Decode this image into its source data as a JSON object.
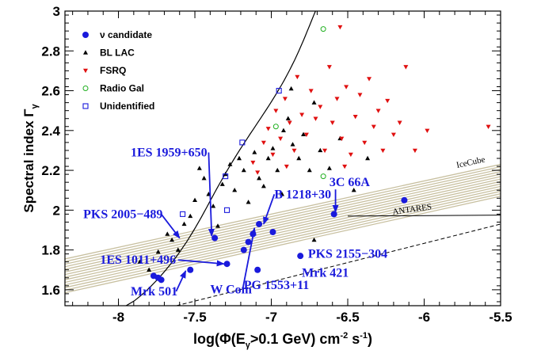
{
  "chart_data": {
    "type": "scatter",
    "xlabel": "log(Φ(E_γ>0.1 GeV) cm⁻² s⁻¹)",
    "xlabel_main": "log(Φ(E",
    "xlabel_sub": "γ",
    "xlabel_rest": ">0.1 GeV) cm",
    "xlabel_sup1": "-2",
    "xlabel_mid": " s",
    "xlabel_sup2": "-1",
    "xlabel_end": ")",
    "ylabel_main": "Spectral index Γ",
    "ylabel_sub": "γ",
    "xlim": [
      -8.35,
      -5.5
    ],
    "ylim": [
      1.52,
      3.0
    ],
    "xticks": [
      -8,
      -7.5,
      -7,
      -6.5,
      -6,
      -5.5
    ],
    "xtick_labels": [
      "-8",
      "-7.5",
      "-7",
      "-6.5",
      "-6",
      "-5.5"
    ],
    "yticks": [
      1.6,
      1.8,
      2.0,
      2.2,
      2.4,
      2.6,
      2.8,
      3.0
    ],
    "ytick_labels": [
      "1.6",
      "1.8",
      "2",
      "2.2",
      "2.4",
      "2.6",
      "2.8",
      "3"
    ],
    "legend_position": "top-left",
    "series": [
      {
        "name": "ν candidate",
        "marker": "filled-circle",
        "color": "#1a1adc",
        "points": [
          {
            "x": -7.77,
            "y": 1.67
          },
          {
            "x": -7.74,
            "y": 1.66
          },
          {
            "x": -7.72,
            "y": 1.65
          },
          {
            "x": -7.53,
            "y": 1.7
          },
          {
            "x": -7.37,
            "y": 1.86
          },
          {
            "x": -7.29,
            "y": 1.73
          },
          {
            "x": -7.18,
            "y": 1.8
          },
          {
            "x": -7.15,
            "y": 1.84
          },
          {
            "x": -7.12,
            "y": 1.88
          },
          {
            "x": -7.08,
            "y": 1.93
          },
          {
            "x": -7.09,
            "y": 1.7
          },
          {
            "x": -6.99,
            "y": 1.89
          },
          {
            "x": -6.81,
            "y": 1.77
          },
          {
            "x": -6.59,
            "y": 1.98
          },
          {
            "x": -6.13,
            "y": 2.05
          }
        ]
      },
      {
        "name": "BL LAC",
        "marker": "triangle-up",
        "color": "#000000",
        "points": [
          {
            "x": -7.86,
            "y": 1.74
          },
          {
            "x": -7.8,
            "y": 1.7
          },
          {
            "x": -7.74,
            "y": 1.79
          },
          {
            "x": -7.68,
            "y": 1.88
          },
          {
            "x": -7.65,
            "y": 1.85
          },
          {
            "x": -7.61,
            "y": 1.8
          },
          {
            "x": -7.57,
            "y": 1.93
          },
          {
            "x": -7.53,
            "y": 1.97
          },
          {
            "x": -7.5,
            "y": 2.05
          },
          {
            "x": -7.47,
            "y": 2.21
          },
          {
            "x": -7.44,
            "y": 2.16
          },
          {
            "x": -7.41,
            "y": 2.08
          },
          {
            "x": -7.38,
            "y": 2.02
          },
          {
            "x": -7.35,
            "y": 1.92
          },
          {
            "x": -7.32,
            "y": 2.13
          },
          {
            "x": -7.3,
            "y": 2.18
          },
          {
            "x": -7.27,
            "y": 2.23
          },
          {
            "x": -7.24,
            "y": 2.1
          },
          {
            "x": -7.21,
            "y": 2.26
          },
          {
            "x": -7.18,
            "y": 2.2
          },
          {
            "x": -7.15,
            "y": 2.04
          },
          {
            "x": -7.11,
            "y": 2.29
          },
          {
            "x": -7.08,
            "y": 2.16
          },
          {
            "x": -7.05,
            "y": 2.12
          },
          {
            "x": -7.02,
            "y": 2.26
          },
          {
            "x": -6.99,
            "y": 2.31
          },
          {
            "x": -6.96,
            "y": 2.2
          },
          {
            "x": -6.93,
            "y": 2.08
          },
          {
            "x": -6.89,
            "y": 2.46
          },
          {
            "x": -6.86,
            "y": 2.33
          },
          {
            "x": -6.82,
            "y": 2.26
          },
          {
            "x": -6.79,
            "y": 2.38
          },
          {
            "x": -6.75,
            "y": 2.2
          },
          {
            "x": -6.72,
            "y": 2.54
          },
          {
            "x": -6.68,
            "y": 2.3
          },
          {
            "x": -6.62,
            "y": 2.21
          },
          {
            "x": -6.55,
            "y": 2.36
          },
          {
            "x": -6.46,
            "y": 2.1
          },
          {
            "x": -6.37,
            "y": 2.26
          },
          {
            "x": -6.72,
            "y": 1.85
          },
          {
            "x": -6.92,
            "y": 2.4
          },
          {
            "x": -6.87,
            "y": 2.61
          }
        ]
      },
      {
        "name": "FSRQ",
        "marker": "triangle-down",
        "color": "#e01010",
        "points": [
          {
            "x": -7.09,
            "y": 2.19
          },
          {
            "x": -7.05,
            "y": 2.34
          },
          {
            "x": -7.02,
            "y": 2.41
          },
          {
            "x": -6.99,
            "y": 2.28
          },
          {
            "x": -6.97,
            "y": 2.5
          },
          {
            "x": -6.94,
            "y": 2.36
          },
          {
            "x": -6.91,
            "y": 2.56
          },
          {
            "x": -6.88,
            "y": 2.44
          },
          {
            "x": -6.85,
            "y": 2.3
          },
          {
            "x": -6.83,
            "y": 2.67
          },
          {
            "x": -6.8,
            "y": 2.48
          },
          {
            "x": -6.77,
            "y": 2.38
          },
          {
            "x": -6.74,
            "y": 2.6
          },
          {
            "x": -6.71,
            "y": 2.46
          },
          {
            "x": -6.68,
            "y": 2.52
          },
          {
            "x": -6.65,
            "y": 2.3
          },
          {
            "x": -6.62,
            "y": 2.72
          },
          {
            "x": -6.6,
            "y": 2.44
          },
          {
            "x": -6.57,
            "y": 2.56
          },
          {
            "x": -6.54,
            "y": 2.36
          },
          {
            "x": -6.51,
            "y": 2.62
          },
          {
            "x": -6.48,
            "y": 2.28
          },
          {
            "x": -6.45,
            "y": 2.47
          },
          {
            "x": -6.42,
            "y": 2.58
          },
          {
            "x": -6.39,
            "y": 2.34
          },
          {
            "x": -6.36,
            "y": 2.66
          },
          {
            "x": -6.33,
            "y": 2.42
          },
          {
            "x": -6.3,
            "y": 2.5
          },
          {
            "x": -6.27,
            "y": 2.3
          },
          {
            "x": -6.24,
            "y": 2.55
          },
          {
            "x": -6.2,
            "y": 2.38
          },
          {
            "x": -6.16,
            "y": 2.44
          },
          {
            "x": -6.12,
            "y": 2.72
          },
          {
            "x": -6.06,
            "y": 2.3
          },
          {
            "x": -5.98,
            "y": 2.4
          },
          {
            "x": -5.58,
            "y": 2.42
          },
          {
            "x": -6.55,
            "y": 2.92
          },
          {
            "x": -7.12,
            "y": 2.24
          },
          {
            "x": -6.9,
            "y": 2.22
          },
          {
            "x": -6.52,
            "y": 2.22
          }
        ]
      },
      {
        "name": "Radio Gal",
        "marker": "open-circle",
        "color": "#20b020",
        "points": [
          {
            "x": -6.66,
            "y": 2.91
          },
          {
            "x": -6.97,
            "y": 2.42
          },
          {
            "x": -6.66,
            "y": 2.17
          }
        ]
      },
      {
        "name": "Unidentified",
        "marker": "open-square",
        "color": "#1a1adc",
        "points": [
          {
            "x": -6.95,
            "y": 2.6
          },
          {
            "x": -7.19,
            "y": 2.34
          },
          {
            "x": -7.3,
            "y": 2.17
          },
          {
            "x": -7.29,
            "y": 2.0
          },
          {
            "x": -7.58,
            "y": 1.98
          }
        ]
      }
    ],
    "annotations": [
      {
        "text": "1ES 1959+650",
        "tx": -7.92,
        "ty": 2.27,
        "ax": -7.39,
        "ay": 1.87
      },
      {
        "text": "PKS 2005−489",
        "tx": -8.23,
        "ty": 1.96,
        "ax": -7.6,
        "ay": 1.86
      },
      {
        "text": "1ES 1011+496",
        "tx": -8.12,
        "ty": 1.73,
        "ax": -7.31,
        "ay": 1.73
      },
      {
        "text": "Mrk 501",
        "tx": -7.92,
        "ty": 1.572,
        "ax": -7.56,
        "ay": 1.695
      },
      {
        "text": "W Com",
        "tx": -7.4,
        "ty": 1.582,
        "ax": -7.11,
        "ay": 1.91
      },
      {
        "text": "B 1218+30",
        "tx": -6.98,
        "ty": 2.06,
        "ax": -7.05,
        "ay": 1.93
      },
      {
        "text": "3C 66A",
        "tx": -6.62,
        "ty": 2.12,
        "ax": -6.58,
        "ay": 1.99
      },
      {
        "text": "PKS 2155−304",
        "tx": -6.76,
        "ty": 1.76,
        "ax": null,
        "ay": null
      },
      {
        "text": "PG 1553+11",
        "tx": -7.18,
        "ty": 1.604,
        "ax": null,
        "ay": null
      },
      {
        "text": "Mrk 421",
        "tx": -6.8,
        "ty": 1.665,
        "ax": null,
        "ay": null
      }
    ],
    "curve_labels": [
      "IceCube",
      "ANTARES"
    ],
    "grid": false
  }
}
